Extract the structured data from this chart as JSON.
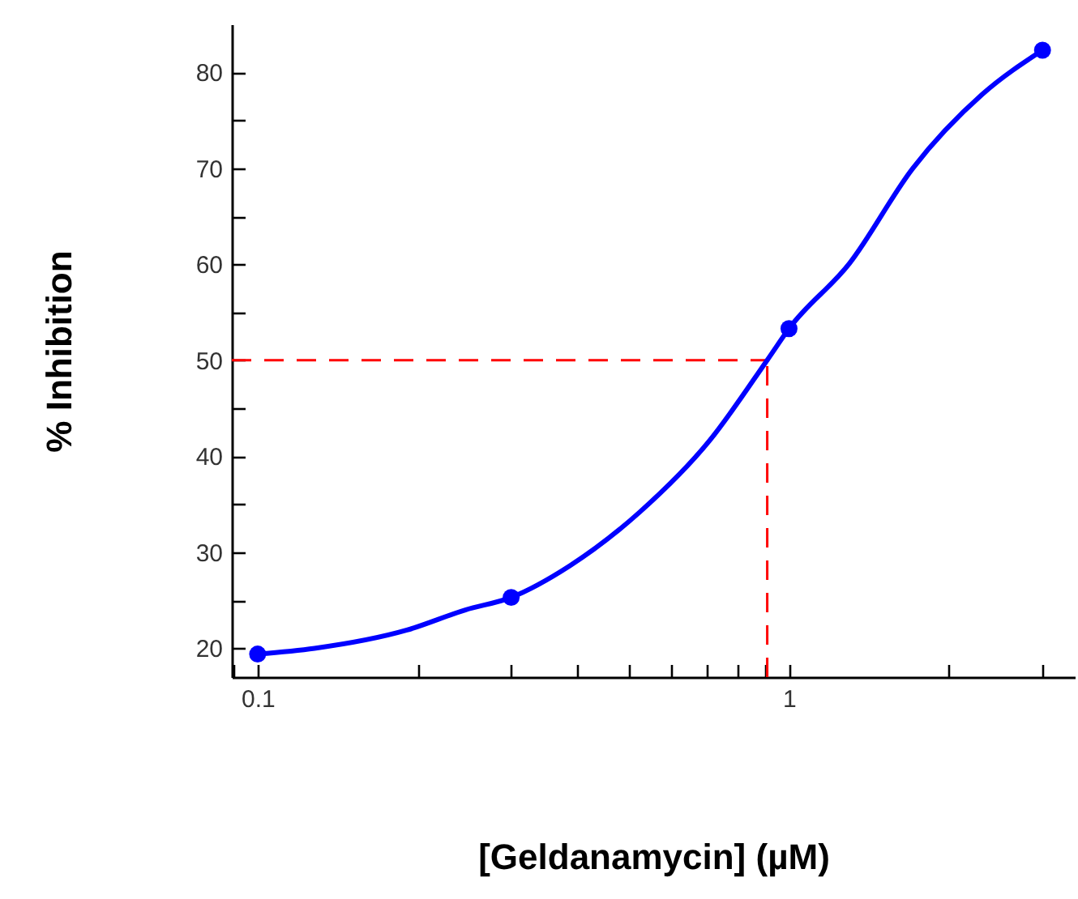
{
  "chart_data": {
    "type": "scatter",
    "xlabel": "[Geldanamycin] (µM)",
    "ylabel": "% Inhibition",
    "log": "x",
    "xlim": [
      0.0894,
      3.45
    ],
    "ylim": [
      17,
      85
    ],
    "xticks": [
      {
        "value": 0.09,
        "label": null
      },
      0.1,
      {
        "value": 0.2,
        "label": null
      },
      {
        "value": 0.3,
        "label": null
      },
      {
        "value": 0.4,
        "label": null
      },
      {
        "value": 0.5,
        "label": null
      },
      {
        "value": 0.6,
        "label": null
      },
      {
        "value": 0.7,
        "label": null
      },
      {
        "value": 0.8,
        "label": null
      },
      {
        "value": 0.9,
        "label": null
      },
      1,
      {
        "value": 2,
        "label": null
      },
      {
        "value": 3,
        "label": null
      }
    ],
    "yticks": [
      20,
      {
        "value": 25,
        "label": null
      },
      30,
      {
        "value": 35,
        "label": null
      },
      40,
      {
        "value": 45,
        "label": null
      },
      50,
      {
        "value": 55,
        "label": null
      },
      60,
      {
        "value": 65,
        "label": null
      },
      70,
      {
        "value": 75,
        "label": null
      },
      80
    ],
    "series": [
      {
        "type": "line",
        "color": "#0000ff",
        "x": [
          0.1,
          0.128,
          0.191,
          0.246,
          0.3,
          0.387,
          0.524,
          0.708,
          0.912,
          1,
          1.3,
          1.71,
          2.31,
          3
        ],
        "values": [
          19.4,
          20.0,
          21.9,
          24.0,
          25.3,
          28.6,
          34.2,
          41.6,
          50.1,
          53.3,
          60.1,
          70.0,
          77.7,
          82.3
        ],
        "marker": "none"
      },
      {
        "color": "#0000ff",
        "x": [
          0.1,
          0.3,
          1,
          3
        ],
        "values": [
          19.4,
          25.3,
          53.3,
          82.3
        ],
        "marker": "circle"
      }
    ],
    "ref_lines": [
      {
        "axis": "y",
        "value": 50,
        "color": "#ff0000",
        "line_style": "dashed"
      },
      {
        "axis": "x",
        "value": 0.91,
        "color": "#ff0000",
        "line_style": "dashed"
      }
    ]
  }
}
